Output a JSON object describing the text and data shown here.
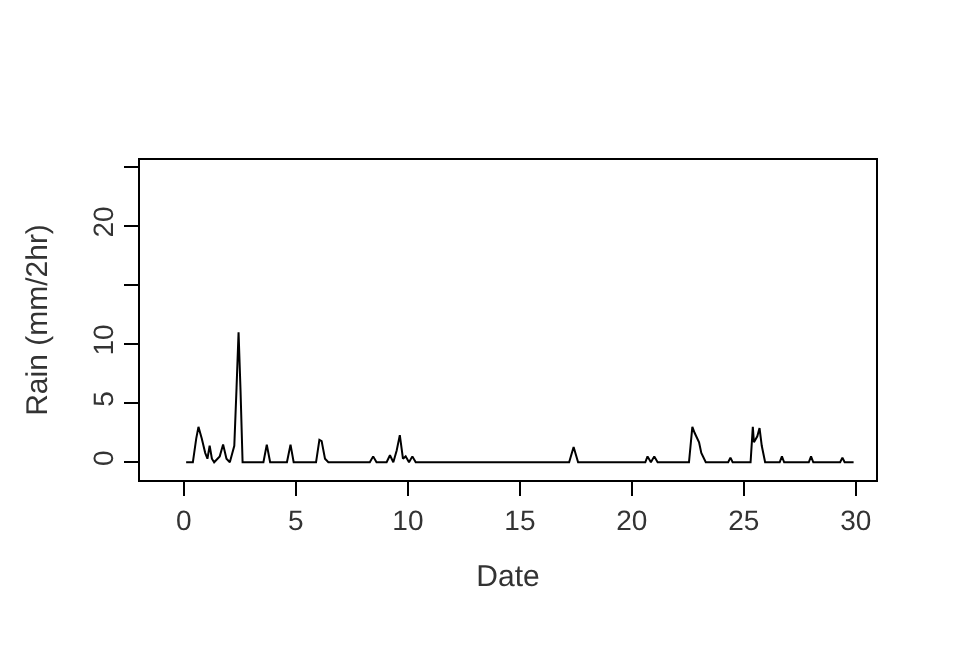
{
  "chart_data": {
    "type": "line",
    "xlabel": "Date",
    "ylabel": "Rain (mm/2hr)",
    "x": [
      0.1,
      0.4,
      0.55,
      0.65,
      0.8,
      0.95,
      1.05,
      1.15,
      1.25,
      1.35,
      1.6,
      1.75,
      1.9,
      2.05,
      2.25,
      2.35,
      2.44,
      2.53,
      2.62,
      2.75,
      3.55,
      3.7,
      3.85,
      4.6,
      4.76,
      4.9,
      5.9,
      6.05,
      6.15,
      6.3,
      6.45,
      8.3,
      8.45,
      8.6,
      9.05,
      9.2,
      9.35,
      9.5,
      9.64,
      9.78,
      9.9,
      10.05,
      10.2,
      10.35,
      17.2,
      17.4,
      17.6,
      20.6,
      20.7,
      20.85,
      21.0,
      21.15,
      22.55,
      22.7,
      22.8,
      23.0,
      23.1,
      23.3,
      24.3,
      24.4,
      24.5,
      25.3,
      25.4,
      25.45,
      25.6,
      25.7,
      25.8,
      25.95,
      26.6,
      26.7,
      26.8,
      27.9,
      28.0,
      28.1,
      29.3,
      29.4,
      29.5,
      29.9
    ],
    "values": [
      0,
      0,
      2.0,
      3.0,
      2.0,
      0.8,
      0.3,
      1.4,
      0.3,
      0,
      0.5,
      1.5,
      0.3,
      0,
      1.4,
      6.3,
      11.0,
      6.0,
      0,
      0,
      0,
      1.5,
      0,
      0,
      1.5,
      0,
      0,
      1.9,
      1.8,
      0.3,
      0,
      0,
      0.5,
      0,
      0,
      0.6,
      0,
      1.0,
      2.3,
      0.3,
      0.5,
      0,
      0.5,
      0,
      0,
      1.3,
      0,
      0,
      0.5,
      0,
      0.5,
      0,
      0,
      3.0,
      2.5,
      1.7,
      0.8,
      0,
      0,
      0.4,
      0,
      0,
      3.0,
      1.7,
      2.2,
      2.9,
      1.4,
      0,
      0,
      0.5,
      0,
      0,
      0.5,
      0,
      0,
      0.4,
      0,
      0
    ],
    "color": "#000000",
    "line_style": "solid",
    "marker": "none",
    "legend": false,
    "xlim": [
      -1.96,
      30.9
    ],
    "ylim": [
      -1.5,
      25.6
    ],
    "xticks": [
      0,
      5,
      10,
      15,
      20,
      25,
      30
    ],
    "yticks": [
      0,
      5,
      10,
      {
        "value": 15,
        "label": null
      },
      20,
      {
        "value": 25,
        "label": null
      }
    ]
  }
}
